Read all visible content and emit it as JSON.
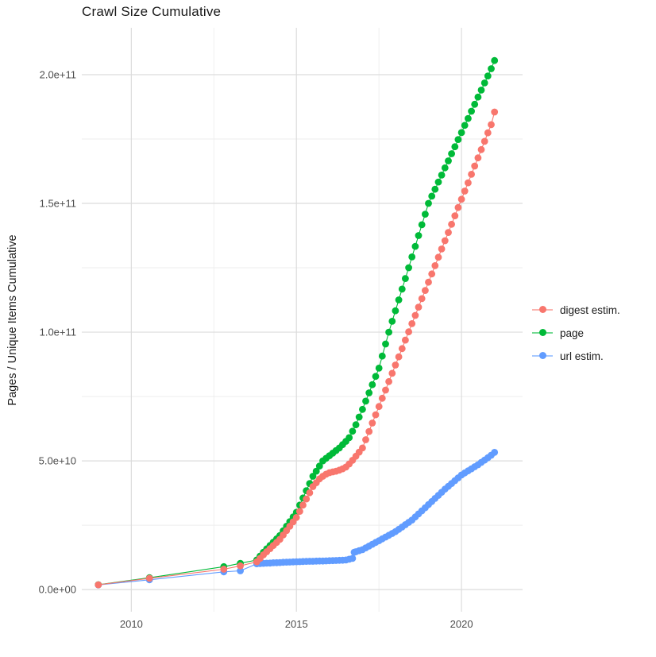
{
  "chart": {
    "title": "Crawl Size Cumulative",
    "y_axis_title": "Pages / Unique Items Cumulative"
  },
  "chart_data": {
    "type": "line",
    "subtype": "line-with-points",
    "title": "Crawl Size Cumulative",
    "xlabel": "",
    "ylabel": "Pages / Unique Items Cumulative",
    "x_unit": "year",
    "value_unit_multiplier": 1000000000,
    "value_unit_note": "point values below are in billions (1e9)",
    "xlim": [
      2008.5,
      2021.85
    ],
    "ylim_billions": [
      -8.6,
      218.2
    ],
    "grid": true,
    "panel_background": "#ffffff",
    "grid_major_color": "#dcdcdc",
    "grid_minor_color": "#eeeeee",
    "tick_label_color": "#4d4d4d",
    "x_ticks": [
      {
        "value": 2010,
        "label": "2010"
      },
      {
        "value": 2015,
        "label": "2015"
      },
      {
        "value": 2020,
        "label": "2020"
      }
    ],
    "x_minor_ticks": [
      2012.5,
      2017.5
    ],
    "y_ticks": [
      {
        "value_billions": 0,
        "label": "0.0e+00"
      },
      {
        "value_billions": 50,
        "label": "5.0e+10"
      },
      {
        "value_billions": 100,
        "label": "1.0e+11"
      },
      {
        "value_billions": 150,
        "label": "1.5e+11"
      },
      {
        "value_billions": 200,
        "label": "2.0e+11"
      }
    ],
    "y_minor_ticks_billions": [
      25,
      75,
      125,
      175
    ],
    "legend_position": "right",
    "legend_order": [
      "digest",
      "page",
      "url"
    ],
    "draw_order": [
      "page",
      "url",
      "digest"
    ],
    "series": [
      {
        "id": "digest",
        "label": "digest estim.",
        "color": "#F8766D",
        "points": [
          [
            2009.0,
            1.85
          ],
          [
            2010.55,
            4.4
          ],
          [
            2012.8,
            7.9
          ],
          [
            2013.3,
            9.2
          ],
          [
            2013.8,
            10.8
          ],
          [
            2013.9,
            12.1
          ],
          [
            2014.0,
            13.5
          ],
          [
            2014.1,
            14.7
          ],
          [
            2014.2,
            15.9
          ],
          [
            2014.3,
            17.1
          ],
          [
            2014.4,
            18.3
          ],
          [
            2014.5,
            19.5
          ],
          [
            2014.6,
            21.2
          ],
          [
            2014.7,
            22.9
          ],
          [
            2014.8,
            24.6
          ],
          [
            2014.9,
            26.3
          ],
          [
            2015.0,
            28.0
          ],
          [
            2015.1,
            30.4
          ],
          [
            2015.2,
            32.8
          ],
          [
            2015.3,
            35.2
          ],
          [
            2015.4,
            37.6
          ],
          [
            2015.5,
            40.0
          ],
          [
            2015.6,
            41.5
          ],
          [
            2015.7,
            43.0
          ],
          [
            2015.8,
            44.0
          ],
          [
            2015.9,
            44.8
          ],
          [
            2016.0,
            45.4
          ],
          [
            2016.1,
            45.7
          ],
          [
            2016.2,
            46.0
          ],
          [
            2016.3,
            46.4
          ],
          [
            2016.4,
            46.9
          ],
          [
            2016.5,
            47.6
          ],
          [
            2016.6,
            48.8
          ],
          [
            2016.7,
            50.2
          ],
          [
            2016.8,
            51.8
          ],
          [
            2016.9,
            53.4
          ],
          [
            2017.0,
            55.0
          ],
          [
            2017.1,
            58.2
          ],
          [
            2017.2,
            61.4
          ],
          [
            2017.3,
            64.7
          ],
          [
            2017.4,
            67.9
          ],
          [
            2017.5,
            71.1
          ],
          [
            2017.6,
            74.3
          ],
          [
            2017.7,
            77.5
          ],
          [
            2017.8,
            80.8
          ],
          [
            2017.9,
            84.0
          ],
          [
            2018.0,
            87.2
          ],
          [
            2018.1,
            90.4
          ],
          [
            2018.2,
            93.6
          ],
          [
            2018.3,
            96.9
          ],
          [
            2018.4,
            100.1
          ],
          [
            2018.5,
            103.3
          ],
          [
            2018.6,
            106.5
          ],
          [
            2018.7,
            109.7
          ],
          [
            2018.8,
            113.0
          ],
          [
            2018.9,
            116.2
          ],
          [
            2019.0,
            119.4
          ],
          [
            2019.1,
            122.6
          ],
          [
            2019.2,
            125.8
          ],
          [
            2019.3,
            129.1
          ],
          [
            2019.4,
            132.3
          ],
          [
            2019.5,
            135.5
          ],
          [
            2019.6,
            138.7
          ],
          [
            2019.7,
            141.9
          ],
          [
            2019.8,
            145.2
          ],
          [
            2019.9,
            148.4
          ],
          [
            2020.0,
            151.6
          ],
          [
            2020.1,
            154.8
          ],
          [
            2020.2,
            158.0
          ],
          [
            2020.3,
            161.3
          ],
          [
            2020.4,
            164.5
          ],
          [
            2020.5,
            167.7
          ],
          [
            2020.6,
            170.9
          ],
          [
            2020.7,
            174.1
          ],
          [
            2020.8,
            177.4
          ],
          [
            2020.9,
            180.6
          ],
          [
            2021.0,
            185.5
          ]
        ]
      },
      {
        "id": "page",
        "label": "page",
        "color": "#00BA38",
        "points": [
          [
            2009.0,
            1.9
          ],
          [
            2010.55,
            4.6
          ],
          [
            2012.8,
            8.9
          ],
          [
            2013.3,
            10.2
          ],
          [
            2013.8,
            11.5
          ],
          [
            2013.9,
            13.0
          ],
          [
            2014.0,
            14.5
          ],
          [
            2014.1,
            15.8
          ],
          [
            2014.2,
            17.1
          ],
          [
            2014.3,
            18.4
          ],
          [
            2014.4,
            19.7
          ],
          [
            2014.5,
            21.0
          ],
          [
            2014.6,
            22.8
          ],
          [
            2014.7,
            24.6
          ],
          [
            2014.8,
            26.4
          ],
          [
            2014.9,
            28.2
          ],
          [
            2015.0,
            30.0
          ],
          [
            2015.1,
            32.8
          ],
          [
            2015.2,
            35.6
          ],
          [
            2015.3,
            38.4
          ],
          [
            2015.4,
            41.2
          ],
          [
            2015.5,
            44.0
          ],
          [
            2015.6,
            46.0
          ],
          [
            2015.7,
            48.0
          ],
          [
            2015.8,
            50.0
          ],
          [
            2015.9,
            51.0
          ],
          [
            2016.0,
            52.0
          ],
          [
            2016.1,
            53.0
          ],
          [
            2016.2,
            54.0
          ],
          [
            2016.3,
            55.0
          ],
          [
            2016.4,
            56.3
          ],
          [
            2016.5,
            57.6
          ],
          [
            2016.6,
            59.0
          ],
          [
            2016.7,
            61.5
          ],
          [
            2016.8,
            64.0
          ],
          [
            2016.9,
            67.0
          ],
          [
            2017.0,
            70.0
          ],
          [
            2017.1,
            73.2
          ],
          [
            2017.2,
            76.4
          ],
          [
            2017.3,
            79.6
          ],
          [
            2017.4,
            82.8
          ],
          [
            2017.5,
            86.0
          ],
          [
            2017.6,
            90.7
          ],
          [
            2017.7,
            95.4
          ],
          [
            2017.8,
            100.0
          ],
          [
            2017.9,
            104.2
          ],
          [
            2018.0,
            108.3
          ],
          [
            2018.1,
            112.5
          ],
          [
            2018.2,
            116.7
          ],
          [
            2018.3,
            120.8
          ],
          [
            2018.4,
            125.0
          ],
          [
            2018.5,
            129.2
          ],
          [
            2018.6,
            133.3
          ],
          [
            2018.7,
            137.5
          ],
          [
            2018.8,
            141.7
          ],
          [
            2018.9,
            145.8
          ],
          [
            2019.0,
            150.0
          ],
          [
            2019.1,
            152.8
          ],
          [
            2019.2,
            155.5
          ],
          [
            2019.3,
            158.3
          ],
          [
            2019.4,
            161.0
          ],
          [
            2019.5,
            163.8
          ],
          [
            2019.6,
            166.5
          ],
          [
            2019.7,
            169.3
          ],
          [
            2019.8,
            172.0
          ],
          [
            2019.9,
            174.8
          ],
          [
            2020.0,
            177.5
          ],
          [
            2020.1,
            180.3
          ],
          [
            2020.2,
            183.0
          ],
          [
            2020.3,
            185.8
          ],
          [
            2020.4,
            188.5
          ],
          [
            2020.5,
            191.3
          ],
          [
            2020.6,
            194.0
          ],
          [
            2020.7,
            196.8
          ],
          [
            2020.8,
            199.5
          ],
          [
            2020.9,
            202.3
          ],
          [
            2021.0,
            205.5
          ]
        ]
      },
      {
        "id": "url",
        "label": "url estim.",
        "color": "#619CFF",
        "points": [
          [
            2009.0,
            1.8
          ],
          [
            2010.55,
            3.8
          ],
          [
            2012.8,
            6.9
          ],
          [
            2013.3,
            7.3
          ],
          [
            2013.8,
            10.0
          ],
          [
            2013.9,
            10.1
          ],
          [
            2014.0,
            10.2
          ],
          [
            2014.1,
            10.25
          ],
          [
            2014.2,
            10.3
          ],
          [
            2014.3,
            10.4
          ],
          [
            2014.4,
            10.45
          ],
          [
            2014.5,
            10.5
          ],
          [
            2014.6,
            10.6
          ],
          [
            2014.7,
            10.65
          ],
          [
            2014.8,
            10.7
          ],
          [
            2014.9,
            10.75
          ],
          [
            2015.0,
            10.8
          ],
          [
            2015.1,
            10.85
          ],
          [
            2015.2,
            10.9
          ],
          [
            2015.3,
            10.95
          ],
          [
            2015.4,
            11.0
          ],
          [
            2015.5,
            11.0
          ],
          [
            2015.6,
            11.05
          ],
          [
            2015.7,
            11.1
          ],
          [
            2015.8,
            11.1
          ],
          [
            2015.9,
            11.15
          ],
          [
            2016.0,
            11.2
          ],
          [
            2016.1,
            11.25
          ],
          [
            2016.2,
            11.3
          ],
          [
            2016.3,
            11.35
          ],
          [
            2016.4,
            11.4
          ],
          [
            2016.5,
            11.5
          ],
          [
            2016.6,
            11.8
          ],
          [
            2016.7,
            12.1
          ],
          [
            2016.75,
            14.5
          ],
          [
            2016.8,
            14.7
          ],
          [
            2016.9,
            15.1
          ],
          [
            2017.0,
            15.5
          ],
          [
            2017.1,
            16.2
          ],
          [
            2017.2,
            16.9
          ],
          [
            2017.3,
            17.6
          ],
          [
            2017.4,
            18.3
          ],
          [
            2017.5,
            19.0
          ],
          [
            2017.6,
            19.7
          ],
          [
            2017.7,
            20.4
          ],
          [
            2017.8,
            21.1
          ],
          [
            2017.9,
            21.8
          ],
          [
            2018.0,
            22.5
          ],
          [
            2018.1,
            23.4
          ],
          [
            2018.2,
            24.3
          ],
          [
            2018.3,
            25.2
          ],
          [
            2018.4,
            26.1
          ],
          [
            2018.5,
            27.0
          ],
          [
            2018.6,
            28.2
          ],
          [
            2018.7,
            29.4
          ],
          [
            2018.8,
            30.6
          ],
          [
            2018.9,
            31.8
          ],
          [
            2019.0,
            33.0
          ],
          [
            2019.1,
            34.2
          ],
          [
            2019.2,
            35.4
          ],
          [
            2019.3,
            36.6
          ],
          [
            2019.4,
            37.8
          ],
          [
            2019.5,
            39.0
          ],
          [
            2019.6,
            40.1
          ],
          [
            2019.7,
            41.2
          ],
          [
            2019.8,
            42.3
          ],
          [
            2019.9,
            43.4
          ],
          [
            2020.0,
            44.5
          ],
          [
            2020.1,
            45.3
          ],
          [
            2020.2,
            46.1
          ],
          [
            2020.3,
            46.9
          ],
          [
            2020.4,
            47.7
          ],
          [
            2020.5,
            48.5
          ],
          [
            2020.6,
            49.4
          ],
          [
            2020.7,
            50.3
          ],
          [
            2020.8,
            51.2
          ],
          [
            2020.9,
            52.2
          ],
          [
            2021.0,
            53.3
          ]
        ]
      }
    ]
  }
}
